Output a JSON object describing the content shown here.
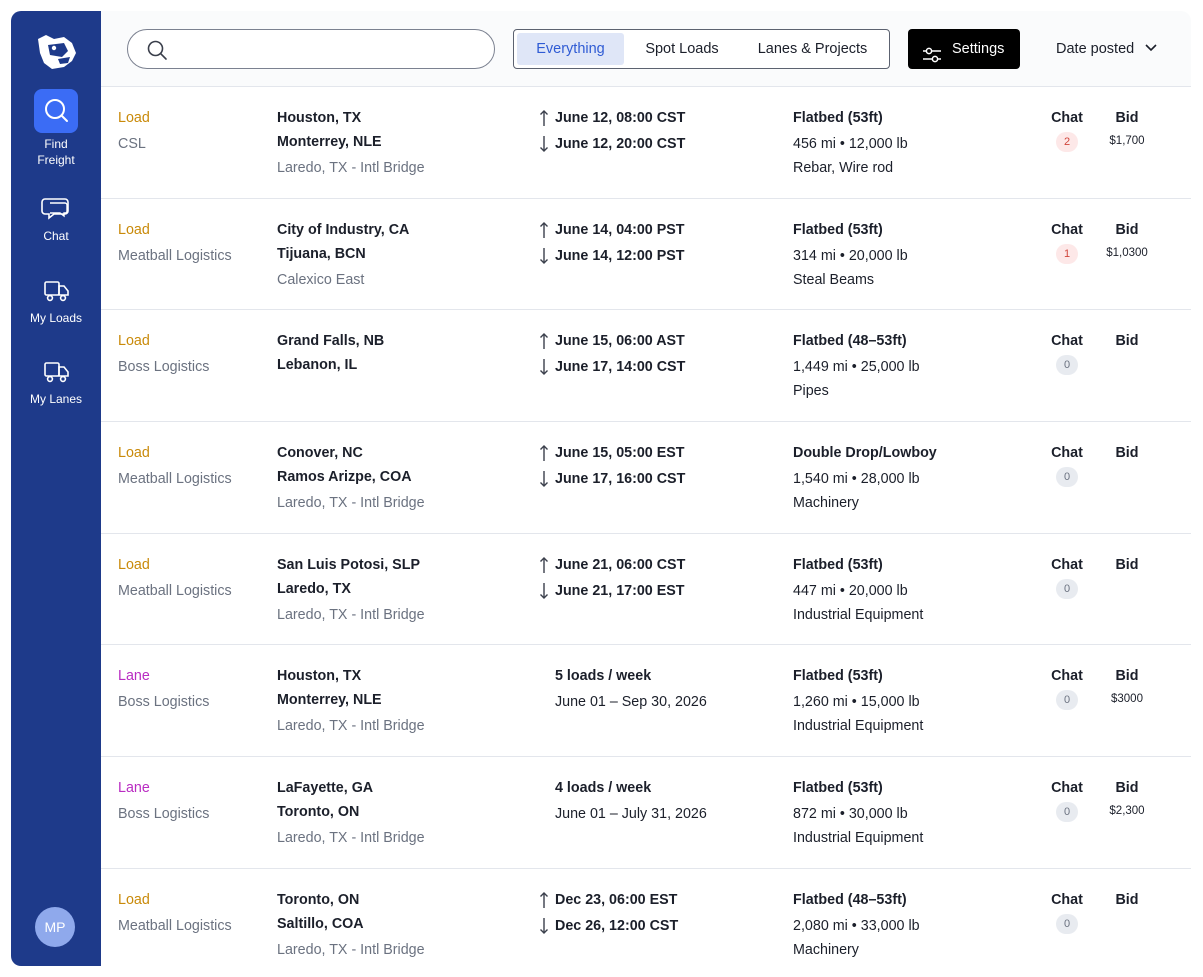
{
  "sidebar": {
    "logo_icon": "bear-head-logo",
    "items": [
      {
        "label": "Find\nFreight",
        "icon": "search-icon",
        "active": true
      },
      {
        "label": "Chat",
        "icon": "chat-bubbles-icon",
        "active": false
      },
      {
        "label": "My Loads",
        "icon": "truck-icon",
        "active": false
      },
      {
        "label": "My Lanes",
        "icon": "truck-icon",
        "active": false
      }
    ],
    "avatar_initials": "MP"
  },
  "topbar": {
    "search_placeholder": "",
    "filters": [
      "Everything",
      "Spot Loads",
      "Lanes & Projects"
    ],
    "active_filter": "Everything",
    "settings_label": "Settings",
    "sort_label": "Date posted"
  },
  "colors": {
    "sidebar": "#1e3a8a",
    "active_nav": "#3b6cf5",
    "load": "#c98a0a",
    "lane": "#b92cc2"
  },
  "rows": [
    {
      "kind": "Load",
      "shipper": "CSL",
      "origin": "Houston, TX",
      "dest": "Monterrey, NLE",
      "border": "Laredo, TX - Intl Bridge",
      "pickup": "June 12, 08:00 CST",
      "delivery": "June 12, 20:00 CST",
      "equipment": "Flatbed (53ft)",
      "distance_weight": "456 mi • 12,000 lb",
      "commodity": "Rebar, Wire rod",
      "chat_label": "Chat",
      "chat_count": "2",
      "bid_label": "Bid",
      "bid_amount": "$1,700"
    },
    {
      "kind": "Load",
      "shipper": "Meatball Logistics",
      "origin": "City of Industry, CA",
      "dest": "Tijuana, BCN",
      "border": "Calexico East",
      "pickup": "June 14, 04:00 PST",
      "delivery": "June 14, 12:00 PST",
      "equipment": "Flatbed (53ft)",
      "distance_weight": "314 mi • 20,000 lb",
      "commodity": "Steal Beams",
      "chat_label": "Chat",
      "chat_count": "1",
      "bid_label": "Bid",
      "bid_amount": "$1,0300"
    },
    {
      "kind": "Load",
      "shipper": "Boss Logistics",
      "origin": "Grand Falls, NB",
      "dest": "Lebanon, IL",
      "border": "",
      "pickup": "June 15, 06:00 AST",
      "delivery": "June 17, 14:00 CST",
      "equipment": "Flatbed (48–53ft)",
      "distance_weight": "1,449 mi • 25,000 lb",
      "commodity": "Pipes",
      "chat_label": "Chat",
      "chat_count": "0",
      "bid_label": "Bid",
      "bid_amount": ""
    },
    {
      "kind": "Load",
      "shipper": "Meatball Logistics",
      "origin": "Conover, NC",
      "dest": "Ramos Arizpe, COA",
      "border": "Laredo, TX - Intl Bridge",
      "pickup": "June 15, 05:00 EST",
      "delivery": "June 17, 16:00 CST",
      "equipment": "Double Drop/Lowboy",
      "distance_weight": "1,540 mi • 28,000 lb",
      "commodity": "Machinery",
      "chat_label": "Chat",
      "chat_count": "0",
      "bid_label": "Bid",
      "bid_amount": ""
    },
    {
      "kind": "Load",
      "shipper": "Meatball Logistics",
      "origin": "San Luis Potosi, SLP",
      "dest": "Laredo, TX",
      "border": "Laredo, TX - Intl Bridge",
      "pickup": "June 21, 06:00 CST",
      "delivery": "June 21, 17:00 EST",
      "equipment": "Flatbed (53ft)",
      "distance_weight": "447 mi • 20,000 lb",
      "commodity": "Industrial Equipment",
      "chat_label": "Chat",
      "chat_count": "0",
      "bid_label": "Bid",
      "bid_amount": ""
    },
    {
      "kind": "Lane",
      "shipper": "Boss Logistics",
      "origin": "Houston, TX",
      "dest": "Monterrey, NLE",
      "border": "Laredo, TX - Intl Bridge",
      "frequency": "5 loads / week",
      "range": "June 01 – Sep 30, 2026",
      "equipment": "Flatbed (53ft)",
      "distance_weight": "1,260 mi • 15,000 lb",
      "commodity": "Industrial Equipment",
      "chat_label": "Chat",
      "chat_count": "0",
      "bid_label": "Bid",
      "bid_amount": "$3000"
    },
    {
      "kind": "Lane",
      "shipper": "Boss Logistics",
      "origin": "LaFayette, GA",
      "dest": "Toronto, ON",
      "border": "Laredo, TX - Intl Bridge",
      "frequency": "4 loads / week",
      "range": "June 01 – July 31, 2026",
      "equipment": "Flatbed (53ft)",
      "distance_weight": "872 mi • 30,000 lb",
      "commodity": "Industrial Equipment",
      "chat_label": "Chat",
      "chat_count": "0",
      "bid_label": "Bid",
      "bid_amount": "$2,300"
    },
    {
      "kind": "Load",
      "shipper": "Meatball Logistics",
      "origin": "Toronto, ON",
      "dest": "Saltillo, COA",
      "border": "Laredo, TX - Intl Bridge",
      "pickup": "Dec 23, 06:00 EST",
      "delivery": "Dec 26, 12:00 CST",
      "equipment": "Flatbed (48–53ft)",
      "distance_weight": "2,080 mi • 33,000 lb",
      "commodity": "Machinery",
      "chat_label": "Chat",
      "chat_count": "0",
      "bid_label": "Bid",
      "bid_amount": ""
    }
  ]
}
